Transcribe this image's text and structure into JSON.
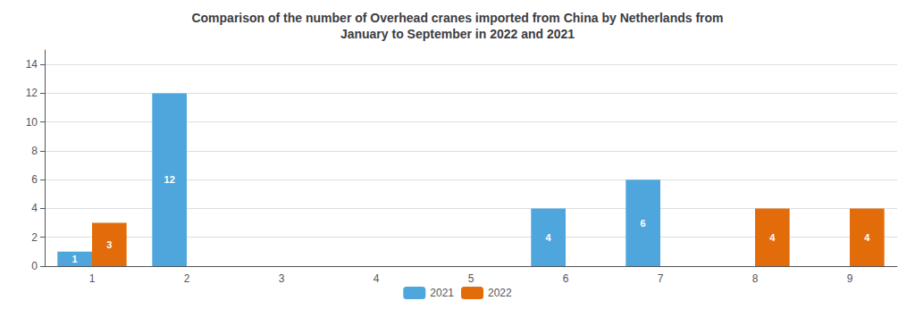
{
  "chart_data": {
    "type": "bar",
    "title": "Comparison of the number of Overhead cranes imported from China by Netherlands from\nJanuary to September in 2022 and 2021",
    "categories": [
      "1",
      "2",
      "3",
      "4",
      "5",
      "6",
      "7",
      "8",
      "9"
    ],
    "series": [
      {
        "name": "2021",
        "color": "#4EA6DC",
        "values": [
          1,
          12,
          0,
          0,
          0,
          4,
          6,
          0,
          0
        ]
      },
      {
        "name": "2022",
        "color": "#E36C0A",
        "values": [
          3,
          0,
          0,
          0,
          0,
          0,
          0,
          4,
          4
        ]
      }
    ],
    "ylim": [
      0,
      15
    ],
    "yticks": [
      0,
      2,
      4,
      6,
      8,
      10,
      12,
      14
    ],
    "grid": true,
    "legend": "bottom",
    "data_labels": true
  }
}
